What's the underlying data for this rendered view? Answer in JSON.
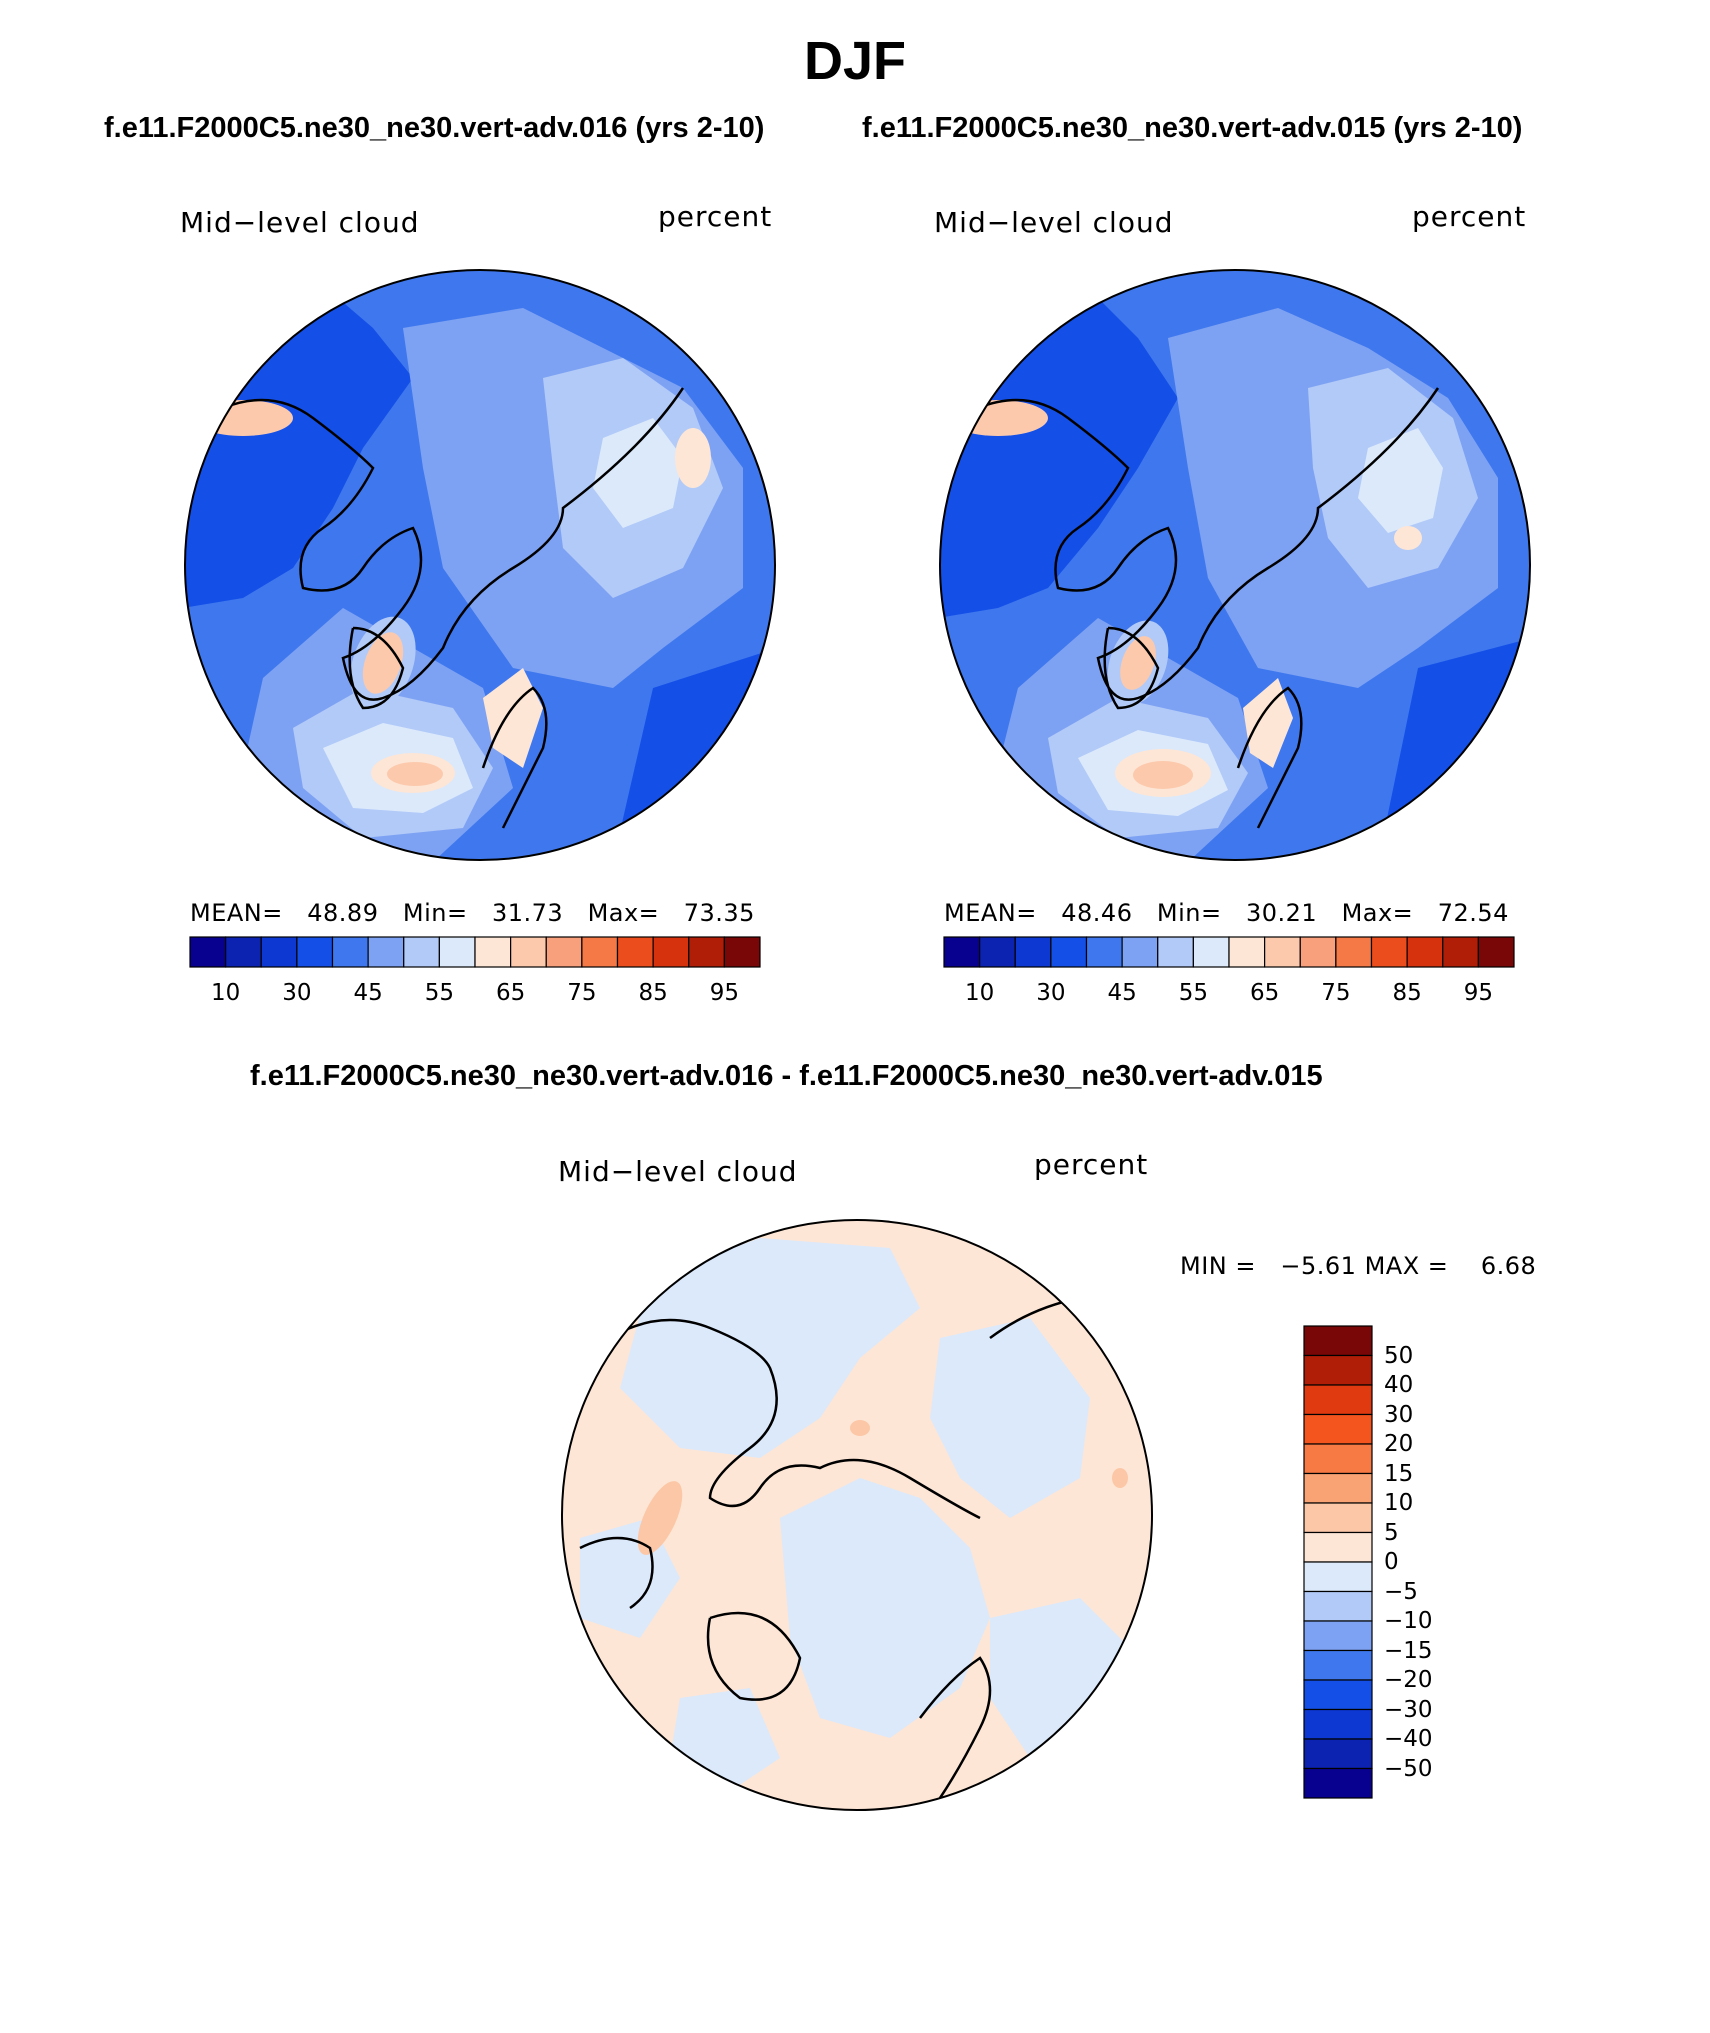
{
  "page": {
    "title": "DJF"
  },
  "panels": [
    {
      "id": "left",
      "title": "f.e11.F2000C5.ne30_ne30.vert-adv.016 (yrs 2-10)",
      "variable": "Mid−level cloud",
      "units": "percent",
      "stats": {
        "mean_label": "MEAN=",
        "mean": "48.89",
        "min_label": "Min=",
        "min": "31.73",
        "max_label": "Max=",
        "max": "73.35"
      },
      "colorbar": {
        "tick_labels": [
          "10",
          "30",
          "45",
          "55",
          "65",
          "75",
          "85",
          "95"
        ],
        "colors": [
          "#08008e",
          "#0c22b0",
          "#0d38d2",
          "#1450e8",
          "#3f78ee",
          "#7ea2f3",
          "#b2caf8",
          "#dbe9fb",
          "#fde6d6",
          "#fcc9ac",
          "#f8a07b",
          "#f47947",
          "#eb4e1c",
          "#d6320e",
          "#b01e08",
          "#7a0707"
        ]
      }
    },
    {
      "id": "right",
      "title": "f.e11.F2000C5.ne30_ne30.vert-adv.015 (yrs 2-10)",
      "variable": "Mid−level cloud",
      "units": "percent",
      "stats": {
        "mean_label": "MEAN=",
        "mean": "48.46",
        "min_label": "Min=",
        "min": "30.21",
        "max_label": "Max=",
        "max": "72.54"
      },
      "colorbar": {
        "tick_labels": [
          "10",
          "30",
          "45",
          "55",
          "65",
          "75",
          "85",
          "95"
        ],
        "colors": [
          "#08008e",
          "#0c22b0",
          "#0d38d2",
          "#1450e8",
          "#3f78ee",
          "#7ea2f3",
          "#b2caf8",
          "#dbe9fb",
          "#fde6d6",
          "#fcc9ac",
          "#f8a07b",
          "#f47947",
          "#eb4e1c",
          "#d6320e",
          "#b01e08",
          "#7a0707"
        ]
      }
    }
  ],
  "diff": {
    "title": "f.e11.F2000C5.ne30_ne30.vert-adv.016 - f.e11.F2000C5.ne30_ne30.vert-adv.015",
    "variable": "Mid−level cloud",
    "units": "percent",
    "stats": {
      "min_label": "MIN =",
      "min": "−5.61",
      "max_label": "MAX =",
      "max": "6.68"
    },
    "colorbar": {
      "levels": [
        "50",
        "40",
        "30",
        "20",
        "15",
        "10",
        "5",
        "0",
        "−5",
        "−10",
        "−15",
        "−20",
        "−30",
        "−40",
        "−50"
      ],
      "colors": [
        "#7a0707",
        "#b01e08",
        "#e03a10",
        "#f4551f",
        "#f77a45",
        "#f9a273",
        "#fcc7a6",
        "#fde6d6",
        "#dbe9fb",
        "#b2caf8",
        "#7ea2f3",
        "#3f78ee",
        "#1450e8",
        "#0d38d2",
        "#0c22b0",
        "#08008e"
      ]
    }
  }
}
